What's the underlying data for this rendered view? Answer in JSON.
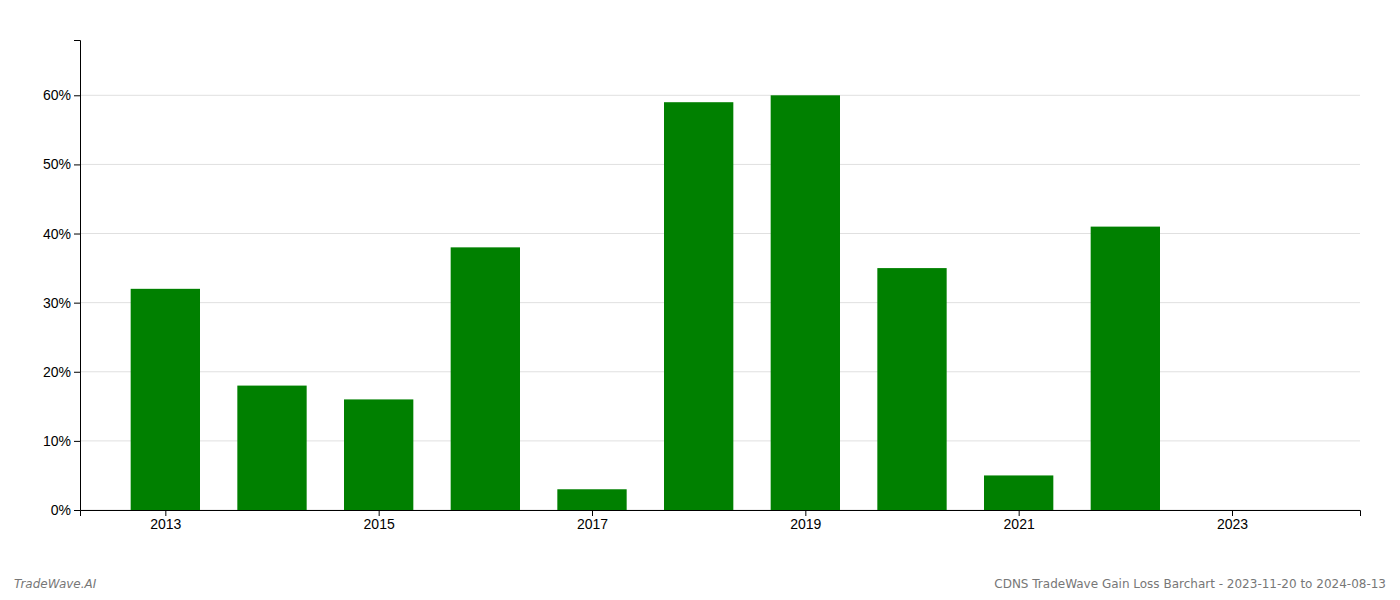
{
  "chart_data": {
    "type": "bar",
    "x": [
      2013,
      2014,
      2015,
      2016,
      2017,
      2018,
      2019,
      2020,
      2021,
      2022,
      2023
    ],
    "values": [
      0.32,
      0.18,
      0.16,
      0.38,
      0.03,
      0.59,
      0.6,
      0.35,
      0.05,
      0.41,
      0.0
    ],
    "color": "#008000",
    "xlim": [
      2012.2,
      2024.2
    ],
    "xticks": [
      2013,
      2015,
      2017,
      2019,
      2021,
      2023
    ],
    "ylim": [
      0,
      0.68
    ],
    "yticks": [
      {
        "value": 0.0,
        "label": "0%"
      },
      {
        "value": 0.1,
        "label": "10%"
      },
      {
        "value": 0.2,
        "label": "20%"
      },
      {
        "value": 0.3,
        "label": "30%"
      },
      {
        "value": 0.4,
        "label": "40%"
      },
      {
        "value": 0.5,
        "label": "50%"
      },
      {
        "value": 0.6,
        "label": "60%"
      }
    ],
    "grid": true,
    "annotations": [
      "TradeWave.AI",
      "CDNS TradeWave Gain Loss Barchart - 2023-11-20 to 2024-08-13"
    ]
  }
}
